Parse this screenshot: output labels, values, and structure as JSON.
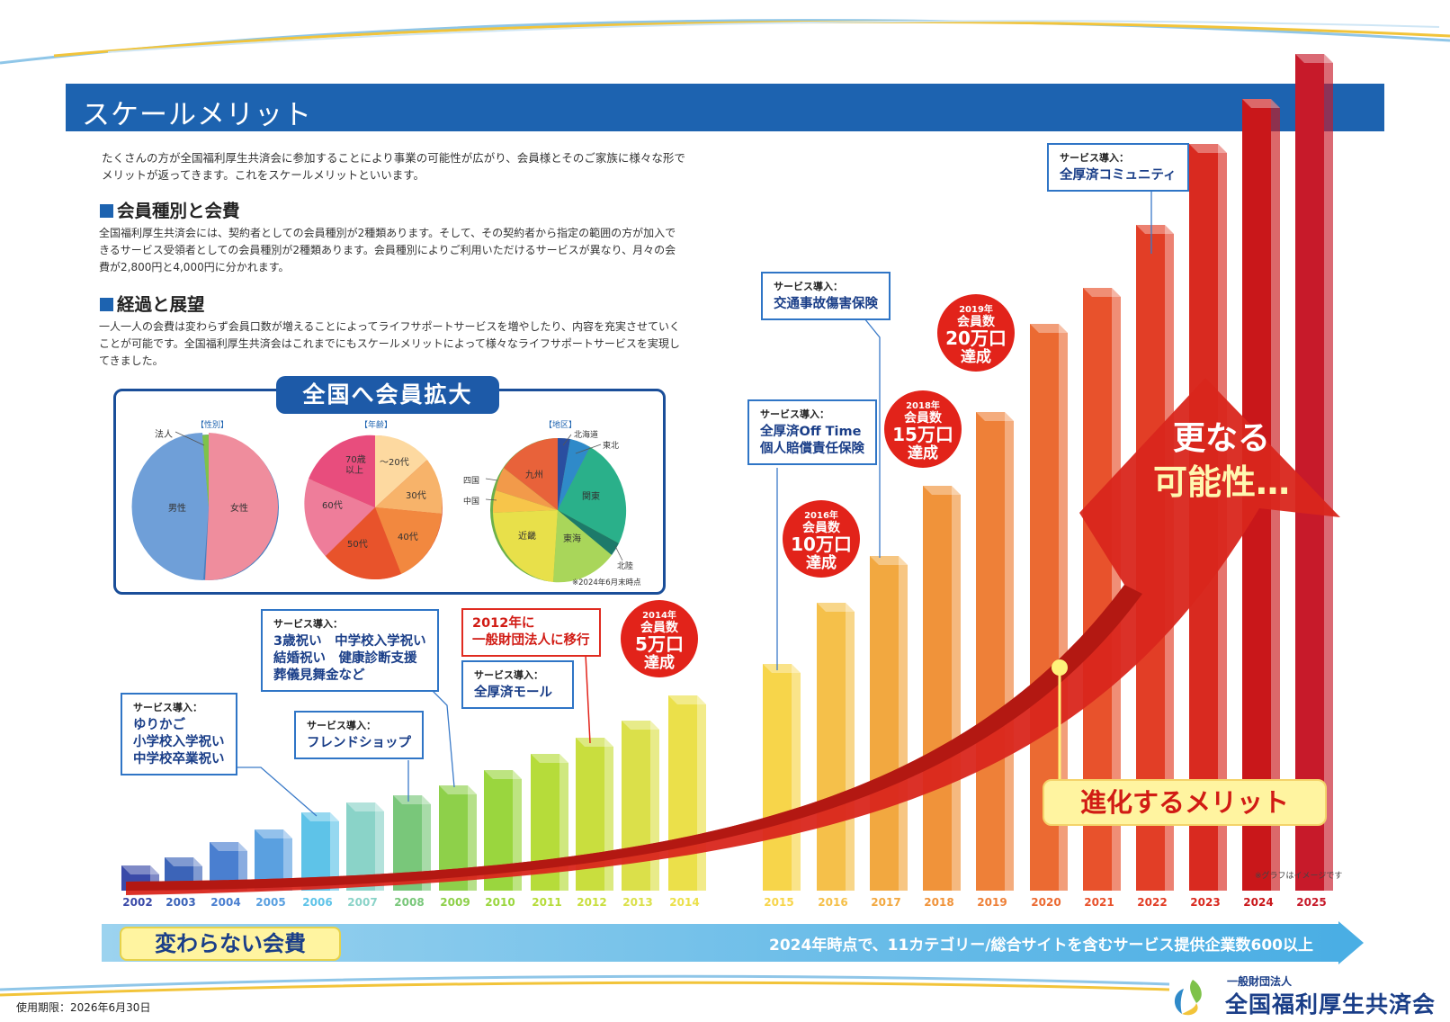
{
  "title": "スケールメリット",
  "intro": "たくさんの方が全国福利厚生共済会に参加することにより事業の可能性が広がり、会員様とそのご家族に様々な形でメリットが返ってきます。これをスケールメリットといいます。",
  "sections": [
    {
      "heading": "会員種別と会費",
      "body": "全国福利厚生共済会には、契約者としての会員種別が2種類あります。そして、その契約者から指定の範囲の方が加入できるサービス受領者としての会員種別が2種類あります。会員種別によりご利用いただけるサービスが異なり、月々の会費が2,800円と4,000円に分かれます。"
    },
    {
      "heading": "経過と展望",
      "body": "一人一人の会費は変わらず会員口数が増えることによってライフサポートサービスを増やしたり、内容を充実させていくことが可能です。全国福利厚生共済会はこれまでにもスケールメリットによって様々なライフサポートサービスを実現してきました。"
    }
  ],
  "pie_panel": {
    "title": "全国へ会員拡大",
    "note": "※2024年6月末時点",
    "charts": [
      {
        "caption": "【性別】",
        "labels": [
          "法人",
          "男性",
          "女性"
        ]
      },
      {
        "caption": "【年齢】",
        "labels": [
          "〜20代",
          "30代",
          "40代",
          "50代",
          "60代",
          "70歳\n以上"
        ]
      },
      {
        "caption": "【地区】",
        "labels": [
          "北海道",
          "東北",
          "関東",
          "東海",
          "北陸",
          "近畿",
          "中国",
          "四国",
          "九州"
        ]
      }
    ]
  },
  "callouts": [
    {
      "caption": "サービス導入：",
      "text": "ゆりかご\n小学校入学祝い\n中学校卒業祝い"
    },
    {
      "caption": "サービス導入：",
      "text": "フレンドショップ"
    },
    {
      "caption": "サービス導入：",
      "text": "3歳祝い　中学校入学祝い\n結婚祝い　健康診断支援\n葬儀見舞金など"
    },
    {
      "caption": "",
      "text": "2012年に\n一般財団法人に移行"
    },
    {
      "caption": "サービス導入：",
      "text": "全厚済モール"
    },
    {
      "caption": "サービス導入：",
      "text": "全厚済Off Time\n個人賠償責任保険"
    },
    {
      "caption": "サービス導入：",
      "text": "交通事故傷害保険"
    },
    {
      "caption": "サービス導入：",
      "text": "全厚済コミュニティ"
    }
  ],
  "badges": [
    {
      "year": "2014年",
      "l1": "会員数",
      "l2": "5万口",
      "l3": "達成"
    },
    {
      "year": "2016年",
      "l1": "会員数",
      "l2": "10万口",
      "l3": "達成"
    },
    {
      "year": "2018年",
      "l1": "会員数",
      "l2": "15万口",
      "l3": "達成"
    },
    {
      "year": "2019年",
      "l1": "会員数",
      "l2": "20万口",
      "l3": "達成"
    }
  ],
  "years": [
    "2002",
    "2003",
    "2004",
    "2005",
    "2006",
    "2007",
    "2008",
    "2009",
    "2010",
    "2011",
    "2012",
    "2013",
    "2014",
    "2015",
    "2016",
    "2017",
    "2018",
    "2019",
    "2020",
    "2021",
    "2022",
    "2023",
    "2024",
    "2025"
  ],
  "arrow_text_1": "更なる",
  "arrow_text_2": "可能性…",
  "evolving": "進化するメリット",
  "image_note": "※グラフはイメージです",
  "bottom_label": "変わらない会費",
  "bottom_text": "2024年時点で、11カテゴリー/総合サイトを含むサービス提供企業数600以上",
  "expiry": "使用期限：2026年6月30日",
  "org_small": "一般財団法人",
  "org_name": "全国福利厚生共済会",
  "colors": {
    "accent": "#1d63b0",
    "red": "#e2231a"
  }
}
